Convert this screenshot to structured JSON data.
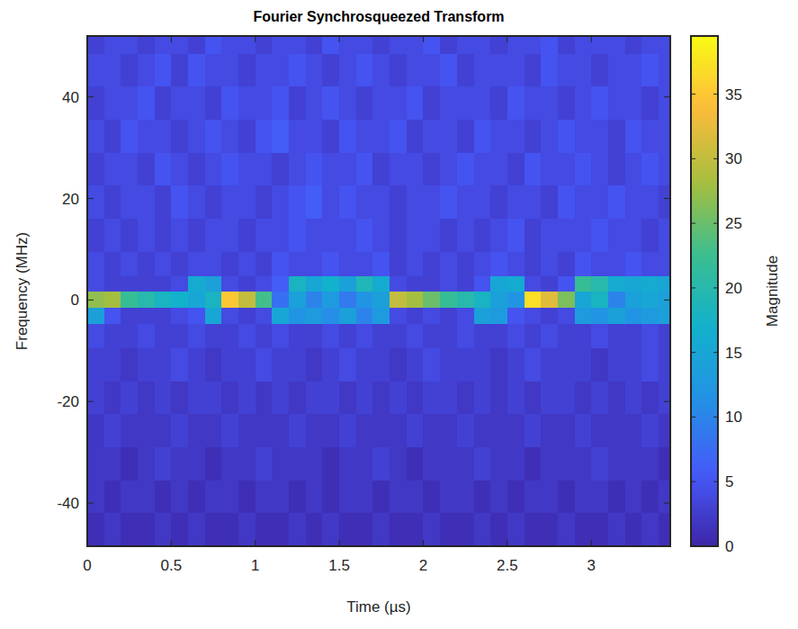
{
  "chart_data": {
    "type": "heatmap",
    "title": "Fourier Synchrosqueezed Transform",
    "x_label": "Time (µs)",
    "y_label": "Frequency (MHz)",
    "xlim": [
      0,
      3.47
    ],
    "ylim": [
      -48.5,
      52
    ],
    "xticks": [
      0,
      0.5,
      1,
      1.5,
      2,
      2.5,
      3
    ],
    "yticks": [
      -40,
      -20,
      0,
      20,
      40
    ],
    "x_edges": [
      0,
      0.1,
      0.2,
      0.3,
      0.4,
      0.5,
      0.6,
      0.7,
      0.8,
      0.9,
      1,
      1.1,
      1.2,
      1.3,
      1.4,
      1.5,
      1.6,
      1.7,
      1.8,
      1.9,
      2,
      2.1,
      2.2,
      2.3,
      2.4,
      2.5,
      2.6,
      2.7,
      2.8,
      2.9,
      3,
      3.1,
      3.2,
      3.3,
      3.4,
      3.47
    ],
    "y_edges": [
      -48.5,
      -42,
      -35.5,
      -29,
      -22.5,
      -16,
      -9.5,
      -4.7,
      -1.6,
      1.6,
      4.7,
      9.5,
      16,
      22.5,
      29,
      35.5,
      42,
      48.5,
      52
    ],
    "values": [
      [
        1,
        2,
        1,
        1,
        2,
        1,
        2,
        1,
        1,
        2,
        1,
        1,
        2,
        1,
        2,
        1,
        1,
        2,
        1,
        1,
        2,
        1,
        1,
        2,
        1,
        2,
        1,
        1,
        2,
        1,
        1,
        2,
        1,
        2,
        1
      ],
      [
        2,
        1,
        2,
        2,
        1,
        2,
        1,
        2,
        2,
        1,
        2,
        2,
        1,
        2,
        1,
        2,
        2,
        1,
        2,
        2,
        1,
        2,
        2,
        1,
        2,
        1,
        2,
        2,
        1,
        2,
        2,
        1,
        2,
        1,
        2
      ],
      [
        2,
        2,
        1,
        2,
        3,
        2,
        2,
        1,
        2,
        2,
        3,
        2,
        2,
        2,
        1,
        2,
        2,
        3,
        2,
        1,
        2,
        2,
        2,
        3,
        2,
        2,
        1,
        2,
        2,
        2,
        3,
        2,
        2,
        2,
        1
      ],
      [
        2,
        3,
        2,
        2,
        2,
        3,
        2,
        2,
        3,
        2,
        2,
        2,
        3,
        2,
        2,
        3,
        2,
        2,
        2,
        3,
        2,
        2,
        3,
        2,
        2,
        2,
        3,
        2,
        2,
        3,
        2,
        2,
        2,
        3,
        2
      ],
      [
        3,
        2,
        3,
        2,
        3,
        2,
        3,
        3,
        2,
        3,
        2,
        3,
        2,
        3,
        3,
        2,
        3,
        2,
        3,
        2,
        3,
        3,
        2,
        3,
        2,
        3,
        2,
        3,
        3,
        2,
        3,
        2,
        3,
        2,
        3
      ],
      [
        3,
        3,
        2,
        3,
        3,
        4,
        3,
        2,
        3,
        3,
        4,
        3,
        3,
        2,
        3,
        4,
        3,
        3,
        2,
        3,
        4,
        3,
        3,
        3,
        2,
        3,
        4,
        3,
        3,
        3,
        2,
        3,
        3,
        4,
        3
      ],
      [
        4,
        3,
        3,
        4,
        3,
        3,
        4,
        3,
        3,
        4,
        3,
        4,
        3,
        3,
        4,
        3,
        4,
        3,
        3,
        4,
        3,
        3,
        4,
        3,
        3,
        4,
        3,
        4,
        3,
        3,
        4,
        3,
        3,
        4,
        3
      ],
      [
        14,
        5,
        3,
        3,
        3,
        4,
        5,
        15,
        4,
        3,
        4,
        15,
        12,
        13,
        11,
        14,
        10,
        13,
        4,
        3,
        4,
        3,
        4,
        14,
        13,
        5,
        4,
        3,
        4,
        13,
        12,
        14,
        12,
        13,
        14
      ],
      [
        27,
        28,
        22,
        20,
        18,
        17,
        15,
        18,
        35,
        30,
        23,
        8,
        14,
        10,
        13,
        9,
        12,
        14,
        30,
        28,
        25,
        22,
        20,
        18,
        14,
        12,
        37,
        32,
        26,
        15,
        18,
        10,
        14,
        15,
        14
      ],
      [
        4,
        3,
        3,
        3,
        3,
        4,
        16,
        14,
        4,
        3,
        4,
        6,
        18,
        15,
        17,
        14,
        19,
        16,
        4,
        3,
        3,
        4,
        3,
        5,
        15,
        16,
        4,
        3,
        5,
        22,
        20,
        16,
        15,
        16,
        15
      ],
      [
        4,
        3,
        4,
        3,
        4,
        3,
        4,
        4,
        3,
        4,
        3,
        5,
        4,
        4,
        5,
        4,
        4,
        5,
        3,
        4,
        3,
        4,
        3,
        4,
        5,
        4,
        3,
        4,
        3,
        5,
        4,
        4,
        5,
        4,
        4
      ],
      [
        3,
        4,
        3,
        4,
        3,
        4,
        3,
        4,
        4,
        3,
        4,
        4,
        5,
        4,
        4,
        4,
        5,
        4,
        3,
        4,
        4,
        3,
        4,
        3,
        4,
        5,
        3,
        4,
        4,
        4,
        5,
        4,
        4,
        3,
        4
      ],
      [
        4,
        3,
        4,
        4,
        3,
        5,
        4,
        3,
        4,
        4,
        3,
        4,
        5,
        6,
        4,
        5,
        4,
        4,
        3,
        4,
        4,
        5,
        4,
        4,
        3,
        4,
        4,
        3,
        5,
        4,
        4,
        5,
        4,
        4,
        3
      ],
      [
        3,
        4,
        4,
        3,
        5,
        4,
        3,
        4,
        5,
        4,
        4,
        3,
        4,
        5,
        4,
        4,
        5,
        3,
        4,
        4,
        3,
        4,
        5,
        4,
        4,
        3,
        5,
        4,
        4,
        5,
        4,
        3,
        4,
        5,
        4
      ],
      [
        4,
        3,
        5,
        4,
        4,
        3,
        4,
        5,
        4,
        3,
        5,
        6,
        4,
        4,
        3,
        5,
        4,
        4,
        5,
        3,
        4,
        4,
        3,
        5,
        4,
        4,
        3,
        4,
        5,
        4,
        4,
        3,
        5,
        4,
        4
      ],
      [
        3,
        4,
        4,
        5,
        3,
        4,
        4,
        3,
        5,
        4,
        4,
        5,
        3,
        4,
        5,
        4,
        3,
        4,
        4,
        5,
        3,
        4,
        4,
        4,
        3,
        5,
        4,
        4,
        3,
        4,
        5,
        4,
        4,
        3,
        4
      ],
      [
        4,
        4,
        3,
        4,
        5,
        3,
        5,
        4,
        4,
        3,
        4,
        4,
        5,
        4,
        3,
        4,
        5,
        4,
        3,
        4,
        4,
        5,
        3,
        4,
        4,
        4,
        3,
        5,
        4,
        4,
        3,
        4,
        4,
        5,
        4
      ],
      [
        3,
        4,
        4,
        3,
        4,
        4,
        3,
        5,
        4,
        4,
        3,
        4,
        4,
        3,
        5,
        4,
        4,
        3,
        4,
        4,
        5,
        3,
        4,
        4,
        3,
        4,
        4,
        5,
        3,
        4,
        4,
        4,
        3,
        4,
        4
      ]
    ],
    "colorbar": {
      "label": "Magnitude",
      "range": [
        0,
        39.5
      ],
      "ticks": [
        0,
        5,
        10,
        15,
        20,
        25,
        30,
        35
      ]
    }
  }
}
